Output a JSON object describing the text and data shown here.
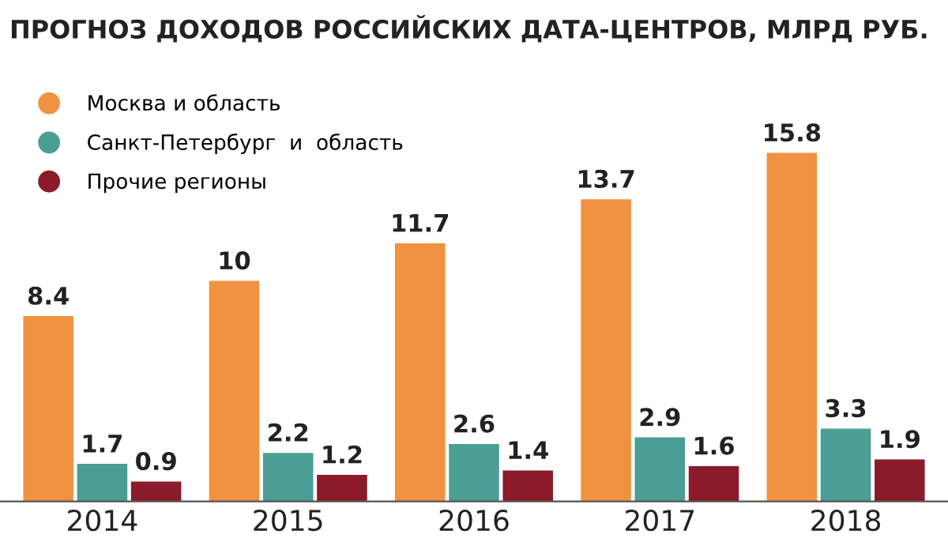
{
  "chart_data": {
    "type": "bar",
    "title": "ПРОГНОЗ ДОХОДОВ РОССИЙСКИХ ДАТА-ЦЕНТРОВ, МЛРД РУБ.",
    "categories": [
      "2014",
      "2015",
      "2016",
      "2017",
      "2018"
    ],
    "series": [
      {
        "name": "Москва и область",
        "color": "#f0923f",
        "values": [
          8.4,
          10,
          11.7,
          13.7,
          15.8
        ]
      },
      {
        "name": "Санкт-Петербург  и  область",
        "color": "#4a9e94",
        "values": [
          1.7,
          2.2,
          2.6,
          2.9,
          3.3
        ]
      },
      {
        "name": "Прочие регионы",
        "color": "#8b1a2a",
        "values": [
          0.9,
          1.2,
          1.4,
          1.6,
          1.9
        ]
      }
    ],
    "data_labels": true,
    "legend": "top left",
    "grid": false
  }
}
